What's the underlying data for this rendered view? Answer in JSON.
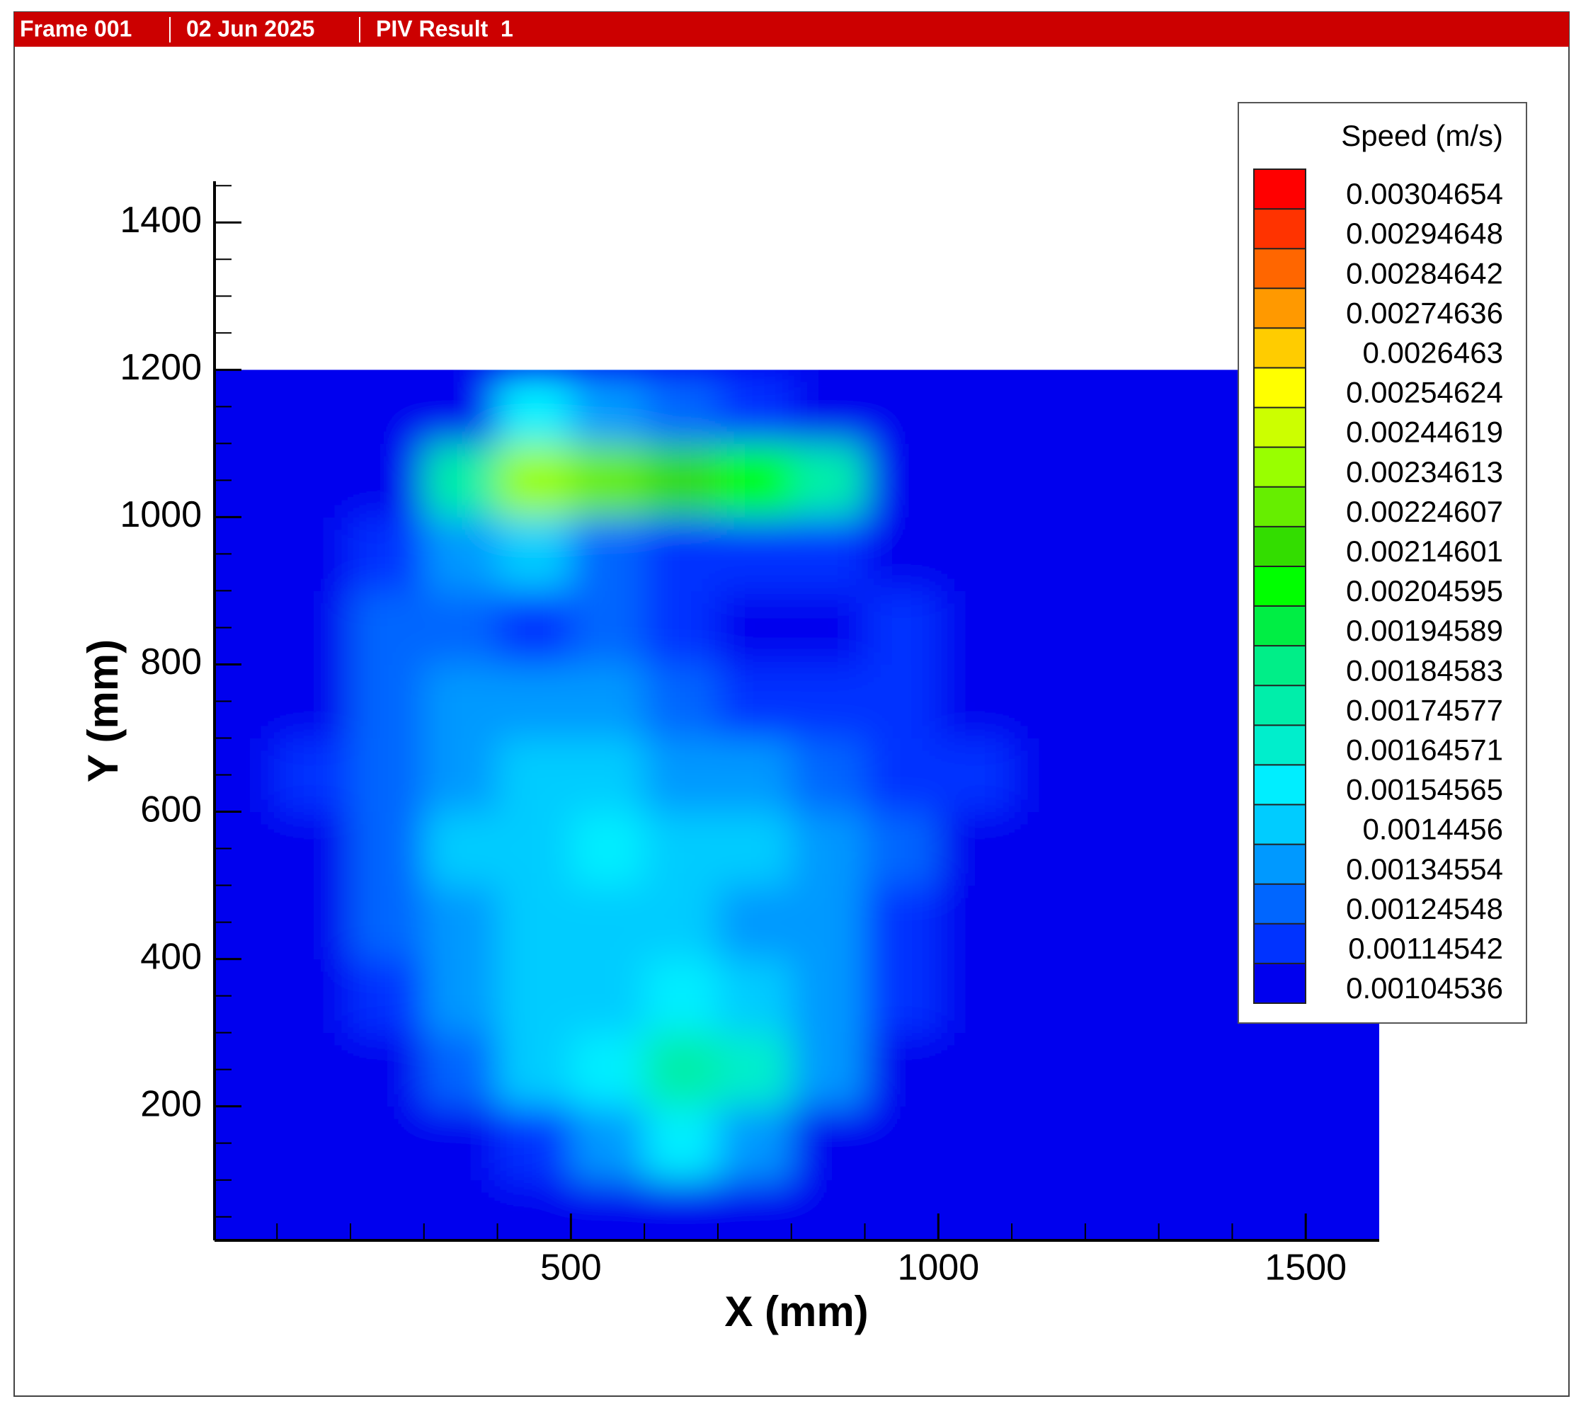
{
  "header": {
    "frame": "Frame 001",
    "date": "02 Jun 2025",
    "result": "PIV Result  1"
  },
  "chart_data": {
    "type": "contour",
    "xlabel": "X (mm)",
    "ylabel": "Y (mm)",
    "xlim": [
      15,
      1600
    ],
    "ylim": [
      18,
      1456
    ],
    "xticks": [
      500,
      1000,
      1500
    ],
    "yticks": [
      200,
      400,
      600,
      800,
      1000,
      1200,
      1400
    ],
    "xminorticks": [
      100,
      200,
      300,
      400,
      600,
      700,
      800,
      900,
      1100,
      1200,
      1300,
      1400
    ],
    "yminorticks": [
      50,
      100,
      150,
      250,
      300,
      350,
      450,
      500,
      550,
      650,
      700,
      750,
      850,
      900,
      950,
      1050,
      1100,
      1150,
      1250,
      1300,
      1350,
      1450
    ],
    "legend_title": "Speed (m/s)",
    "levels": [
      0.00304654,
      0.00294648,
      0.00284642,
      0.00274636,
      0.0026463,
      0.00254624,
      0.00244619,
      0.00234613,
      0.00224607,
      0.00214601,
      0.00204595,
      0.00194589,
      0.00184583,
      0.00174577,
      0.00164571,
      0.00154565,
      0.0014456,
      0.00134554,
      0.00124548,
      0.00114542,
      0.00104536
    ],
    "level_colors": [
      "#ff0000",
      "#ff3300",
      "#ff6600",
      "#ff9900",
      "#ffcc00",
      "#ffff00",
      "#ccff00",
      "#99ff00",
      "#66ee00",
      "#33dd00",
      "#00ff00",
      "#00ee44",
      "#00ee88",
      "#00eeaa",
      "#00eecc",
      "#00eeff",
      "#00ccff",
      "#0099ff",
      "#0066ff",
      "#0033ff",
      "#0000ee"
    ],
    "x": [
      50,
      150,
      250,
      350,
      450,
      550,
      650,
      750,
      850,
      950,
      1050,
      1150,
      1250,
      1350,
      1450,
      1550
    ],
    "y": [
      50,
      150,
      250,
      350,
      450,
      550,
      650,
      750,
      850,
      950,
      1050,
      1150
    ],
    "values": [
      [
        0.001,
        0.001,
        0.001,
        0.001,
        0.001,
        0.001,
        0.001,
        0.001,
        0.001,
        0.001,
        0.001,
        0.001,
        0.001,
        0.001,
        0.001,
        0.001
      ],
      [
        0.001,
        0.001,
        0.001,
        0.001,
        0.0012,
        0.0014,
        0.0016,
        0.0014,
        0.001,
        0.001,
        0.001,
        0.001,
        0.001,
        0.001,
        0.001,
        0.001
      ],
      [
        0.001,
        0.001,
        0.001,
        0.0013,
        0.0015,
        0.0016,
        0.0018,
        0.0017,
        0.0014,
        0.001,
        0.001,
        0.001,
        0.001,
        0.001,
        0.001,
        0.001
      ],
      [
        0.001,
        0.001,
        0.0012,
        0.0014,
        0.0015,
        0.0015,
        0.0016,
        0.0015,
        0.0014,
        0.0012,
        0.001,
        0.001,
        0.001,
        0.001,
        0.001,
        0.001
      ],
      [
        0.001,
        0.001,
        0.0013,
        0.0014,
        0.0015,
        0.0015,
        0.0015,
        0.0014,
        0.0014,
        0.0012,
        0.001,
        0.001,
        0.001,
        0.001,
        0.001,
        0.001
      ],
      [
        0.001,
        0.001,
        0.0013,
        0.0015,
        0.0015,
        0.0016,
        0.0015,
        0.0015,
        0.0014,
        0.0013,
        0.0011,
        0.001,
        0.001,
        0.001,
        0.001,
        0.001
      ],
      [
        0.001,
        0.0012,
        0.0013,
        0.0014,
        0.0015,
        0.0015,
        0.0014,
        0.0014,
        0.0013,
        0.0012,
        0.0012,
        0.001,
        0.001,
        0.001,
        0.001,
        0.001
      ],
      [
        0.001,
        0.0011,
        0.0013,
        0.0014,
        0.0014,
        0.0014,
        0.0013,
        0.0012,
        0.0012,
        0.0012,
        0.0011,
        0.001,
        0.001,
        0.001,
        0.001,
        0.001
      ],
      [
        0.001,
        0.001,
        0.0013,
        0.0013,
        0.0012,
        0.0013,
        0.0012,
        0.0011,
        0.0011,
        0.0012,
        0.0011,
        0.001,
        0.001,
        0.001,
        0.001,
        0.001
      ],
      [
        0.001,
        0.001,
        0.0012,
        0.0014,
        0.0015,
        0.0013,
        0.0012,
        0.0012,
        0.0012,
        0.0011,
        0.001,
        0.001,
        0.001,
        0.001,
        0.001,
        0.001
      ],
      [
        0.001,
        0.001,
        0.001,
        0.0018,
        0.0024,
        0.0023,
        0.0022,
        0.0021,
        0.0018,
        0.001,
        0.001,
        0.001,
        0.001,
        0.001,
        0.001,
        0.001
      ],
      [
        0.001,
        0.001,
        0.001,
        0.0011,
        0.0016,
        0.0014,
        0.0013,
        0.0012,
        0.001,
        0.001,
        0.001,
        0.001,
        0.001,
        0.001,
        0.001,
        0.001
      ]
    ]
  }
}
